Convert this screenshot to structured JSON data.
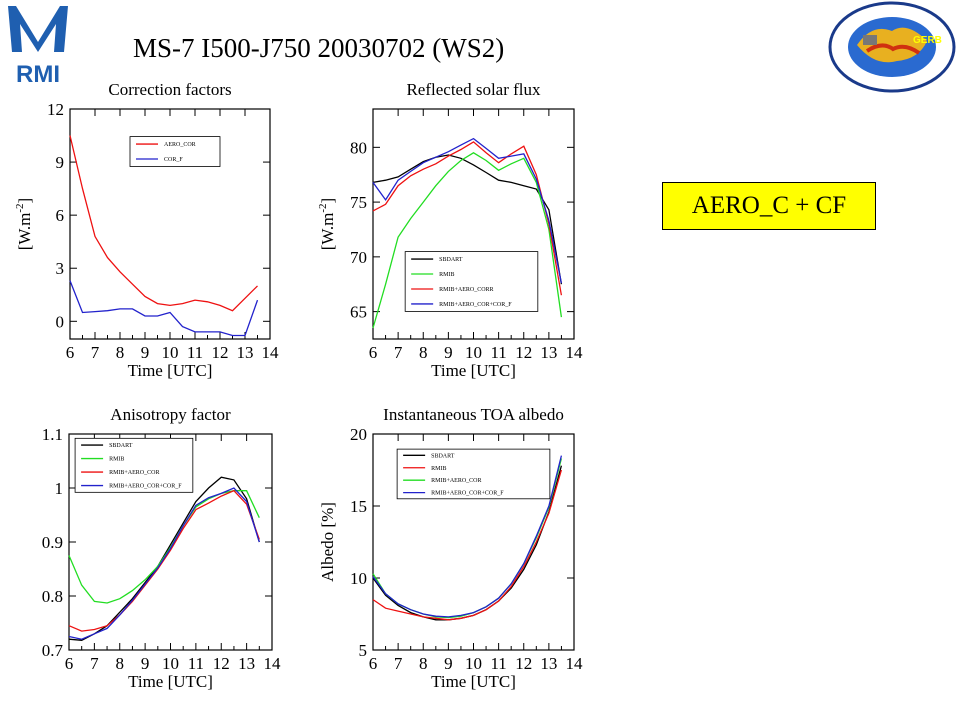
{
  "header": {
    "title": "MS-7 I500-J750 20030702 (WS2)",
    "logo_text": "RMI",
    "badge_text": "CCLRC · DFSO · DIFA · GKSS · Hadley Centre · Imperial College · RMIB · University of Leicester · GERB"
  },
  "callout": {
    "text": "AERO_C + CF"
  },
  "colors": {
    "black": "#000000",
    "green": "#22dd22",
    "red": "#ee1111",
    "blue": "#2222cc",
    "callout_bg": "#ffff00"
  },
  "chart_data": [
    {
      "type": "line",
      "title": "Correction factors",
      "xlabel": "Time [UTC]",
      "ylabel": "[W.m^-2]",
      "xlim": [
        6,
        14
      ],
      "ylim": [
        -1,
        12
      ],
      "xticks": [
        6,
        7,
        8,
        9,
        10,
        11,
        12,
        13,
        14
      ],
      "yticks": [
        0,
        3,
        6,
        9,
        12
      ],
      "legend_position": "top-right",
      "series": [
        {
          "name": "AERO_COR",
          "color": "#ee1111",
          "x": [
            6,
            6.5,
            7,
            7.5,
            8,
            8.5,
            9,
            9.5,
            10,
            10.5,
            11,
            11.5,
            12,
            12.5,
            13,
            13.5
          ],
          "y": [
            10.5,
            7.5,
            4.8,
            3.6,
            2.8,
            2.1,
            1.4,
            1.0,
            0.9,
            1.0,
            1.2,
            1.1,
            0.9,
            0.6,
            1.3,
            2.0
          ]
        },
        {
          "name": "COR_F",
          "color": "#2222cc",
          "x": [
            6,
            6.5,
            7,
            7.5,
            8,
            8.5,
            9,
            9.5,
            10,
            10.5,
            11,
            11.5,
            12,
            12.5,
            13,
            13.5
          ],
          "y": [
            2.3,
            0.5,
            0.55,
            0.6,
            0.7,
            0.7,
            0.3,
            0.3,
            0.5,
            -0.3,
            -0.6,
            -0.6,
            -0.6,
            -0.8,
            -0.8,
            1.2
          ]
        }
      ]
    },
    {
      "type": "line",
      "title": "Reflected solar flux",
      "xlabel": "Time [UTC]",
      "ylabel": "[W.m^-2]",
      "xlim": [
        6,
        14
      ],
      "ylim": [
        62.5,
        83.5
      ],
      "xticks": [
        6,
        7,
        8,
        9,
        10,
        11,
        12,
        13,
        14
      ],
      "yticks": [
        65,
        70,
        75,
        80
      ],
      "legend_position": "bottom-right",
      "series": [
        {
          "name": "SBDART",
          "color": "#000000",
          "x": [
            6,
            6.5,
            7,
            7.5,
            8,
            8.5,
            9,
            9.5,
            10,
            10.5,
            11,
            11.5,
            12,
            12.5,
            13,
            13.5
          ],
          "y": [
            76.8,
            77.0,
            77.3,
            78.0,
            78.7,
            79.1,
            79.3,
            79.0,
            78.4,
            77.7,
            77.0,
            76.8,
            76.5,
            76.2,
            74.3,
            67.5
          ]
        },
        {
          "name": "RMIB",
          "color": "#22dd22",
          "x": [
            6,
            6.5,
            7,
            7.5,
            8,
            8.5,
            9,
            9.5,
            10,
            10.5,
            11,
            11.5,
            12,
            12.5,
            13,
            13.5
          ],
          "y": [
            63.5,
            67.5,
            71.8,
            73.5,
            75.0,
            76.5,
            77.8,
            78.8,
            79.5,
            78.8,
            77.9,
            78.5,
            79.0,
            76.8,
            72.5,
            64.5
          ]
        },
        {
          "name": "RMIB+AERO_CORR",
          "color": "#ee1111",
          "x": [
            6,
            6.5,
            7,
            7.5,
            8,
            8.5,
            9,
            9.5,
            10,
            10.5,
            11,
            11.5,
            12,
            12.5,
            13,
            13.5
          ],
          "y": [
            74.2,
            74.8,
            76.5,
            77.4,
            78.0,
            78.5,
            79.2,
            79.8,
            80.5,
            79.5,
            78.6,
            79.4,
            80.1,
            77.5,
            73.0,
            66.5
          ]
        },
        {
          "name": "RMIB+AERO_COR+COR_F",
          "color": "#2222cc",
          "x": [
            6,
            6.5,
            7,
            7.5,
            8,
            8.5,
            9,
            9.5,
            10,
            10.5,
            11,
            11.5,
            12,
            12.5,
            13,
            13.5
          ],
          "y": [
            76.8,
            75.2,
            77.0,
            77.8,
            78.6,
            79.1,
            79.6,
            80.2,
            80.8,
            79.9,
            79.0,
            79.2,
            79.4,
            77.1,
            73.3,
            67.6
          ]
        }
      ]
    },
    {
      "type": "line",
      "title": "Anisotropy factor",
      "xlabel": "Time [UTC]",
      "ylabel": "",
      "xlim": [
        6,
        14
      ],
      "ylim": [
        0.7,
        1.1
      ],
      "xticks": [
        6,
        7,
        8,
        9,
        10,
        11,
        12,
        13,
        14
      ],
      "yticks": [
        0.7,
        0.8,
        0.9,
        1,
        1.1
      ],
      "ytick_labels": [
        "0.7",
        "0.8",
        "0.9",
        "1",
        "1.1"
      ],
      "legend_position": "top-left",
      "series": [
        {
          "name": "SBDART",
          "color": "#000000",
          "x": [
            6,
            6.5,
            7,
            7.5,
            8,
            8.5,
            9,
            9.5,
            10,
            10.5,
            11,
            11.5,
            12,
            12.5,
            13,
            13.5
          ],
          "y": [
            0.72,
            0.718,
            0.73,
            0.745,
            0.77,
            0.795,
            0.825,
            0.855,
            0.895,
            0.935,
            0.975,
            1.0,
            1.02,
            1.015,
            0.98,
            0.9
          ]
        },
        {
          "name": "RMIB",
          "color": "#22dd22",
          "x": [
            6,
            6.5,
            7,
            7.5,
            8,
            8.5,
            9,
            9.5,
            10,
            10.5,
            11,
            11.5,
            12,
            12.5,
            13,
            13.5
          ],
          "y": [
            0.875,
            0.82,
            0.79,
            0.787,
            0.795,
            0.81,
            0.83,
            0.855,
            0.89,
            0.93,
            0.965,
            0.98,
            0.99,
            0.995,
            0.995,
            0.945
          ]
        },
        {
          "name": "RMIB+AERO_COR",
          "color": "#ee1111",
          "x": [
            6,
            6.5,
            7,
            7.5,
            8,
            8.5,
            9,
            9.5,
            10,
            10.5,
            11,
            11.5,
            12,
            12.5,
            13,
            13.5
          ],
          "y": [
            0.745,
            0.735,
            0.738,
            0.745,
            0.765,
            0.79,
            0.82,
            0.85,
            0.885,
            0.925,
            0.96,
            0.972,
            0.985,
            0.995,
            0.97,
            0.905
          ]
        },
        {
          "name": "RMIB+AERO_COR+COR_F",
          "color": "#2222cc",
          "x": [
            6,
            6.5,
            7,
            7.5,
            8,
            8.5,
            9,
            9.5,
            10,
            10.5,
            11,
            11.5,
            12,
            12.5,
            13,
            13.5
          ],
          "y": [
            0.725,
            0.72,
            0.73,
            0.74,
            0.765,
            0.792,
            0.822,
            0.852,
            0.888,
            0.93,
            0.968,
            0.982,
            0.99,
            1.0,
            0.975,
            0.9
          ]
        }
      ]
    },
    {
      "type": "line",
      "title": "Instantaneous TOA albedo",
      "xlabel": "Time [UTC]",
      "ylabel": "Albedo [%]",
      "xlim": [
        6,
        14
      ],
      "ylim": [
        5,
        20
      ],
      "xticks": [
        6,
        7,
        8,
        9,
        10,
        11,
        12,
        13,
        14
      ],
      "yticks": [
        5,
        10,
        15,
        20
      ],
      "legend_position": "top-right",
      "series": [
        {
          "name": "SBDART",
          "color": "#000000",
          "x": [
            6,
            6.5,
            7,
            7.5,
            8,
            8.5,
            9,
            9.5,
            10,
            10.5,
            11,
            11.5,
            12,
            12.5,
            13,
            13.5
          ],
          "y": [
            10.0,
            8.8,
            8.1,
            7.6,
            7.3,
            7.1,
            7.1,
            7.2,
            7.4,
            7.8,
            8.4,
            9.3,
            10.6,
            12.3,
            14.6,
            17.8
          ]
        },
        {
          "name": "RMIB",
          "color": "#ee1111",
          "x": [
            6,
            6.5,
            7,
            7.5,
            8,
            8.5,
            9,
            9.5,
            10,
            10.5,
            11,
            11.5,
            12,
            12.5,
            13,
            13.5
          ],
          "y": [
            8.5,
            7.9,
            7.7,
            7.5,
            7.3,
            7.2,
            7.1,
            7.2,
            7.4,
            7.8,
            8.4,
            9.4,
            10.8,
            12.5,
            14.5,
            17.5
          ]
        },
        {
          "name": "RMIB+AERO_COR",
          "color": "#22dd22",
          "x": [
            6,
            6.5,
            7,
            7.5,
            8,
            8.5,
            9,
            9.5,
            10,
            10.5,
            11,
            11.5,
            12,
            12.5,
            13,
            13.5
          ],
          "y": [
            10.3,
            8.9,
            8.2,
            7.8,
            7.5,
            7.3,
            7.25,
            7.35,
            7.6,
            8.0,
            8.6,
            9.6,
            11.0,
            12.8,
            14.9,
            18.3
          ]
        },
        {
          "name": "RMIB+AERO_COR+COR_F",
          "color": "#2222cc",
          "x": [
            6,
            6.5,
            7,
            7.5,
            8,
            8.5,
            9,
            9.5,
            10,
            10.5,
            11,
            11.5,
            12,
            12.5,
            13,
            13.5
          ],
          "y": [
            10.1,
            8.9,
            8.2,
            7.8,
            7.5,
            7.35,
            7.3,
            7.4,
            7.6,
            8.0,
            8.6,
            9.6,
            11.0,
            12.9,
            15.0,
            18.5
          ]
        }
      ]
    }
  ]
}
